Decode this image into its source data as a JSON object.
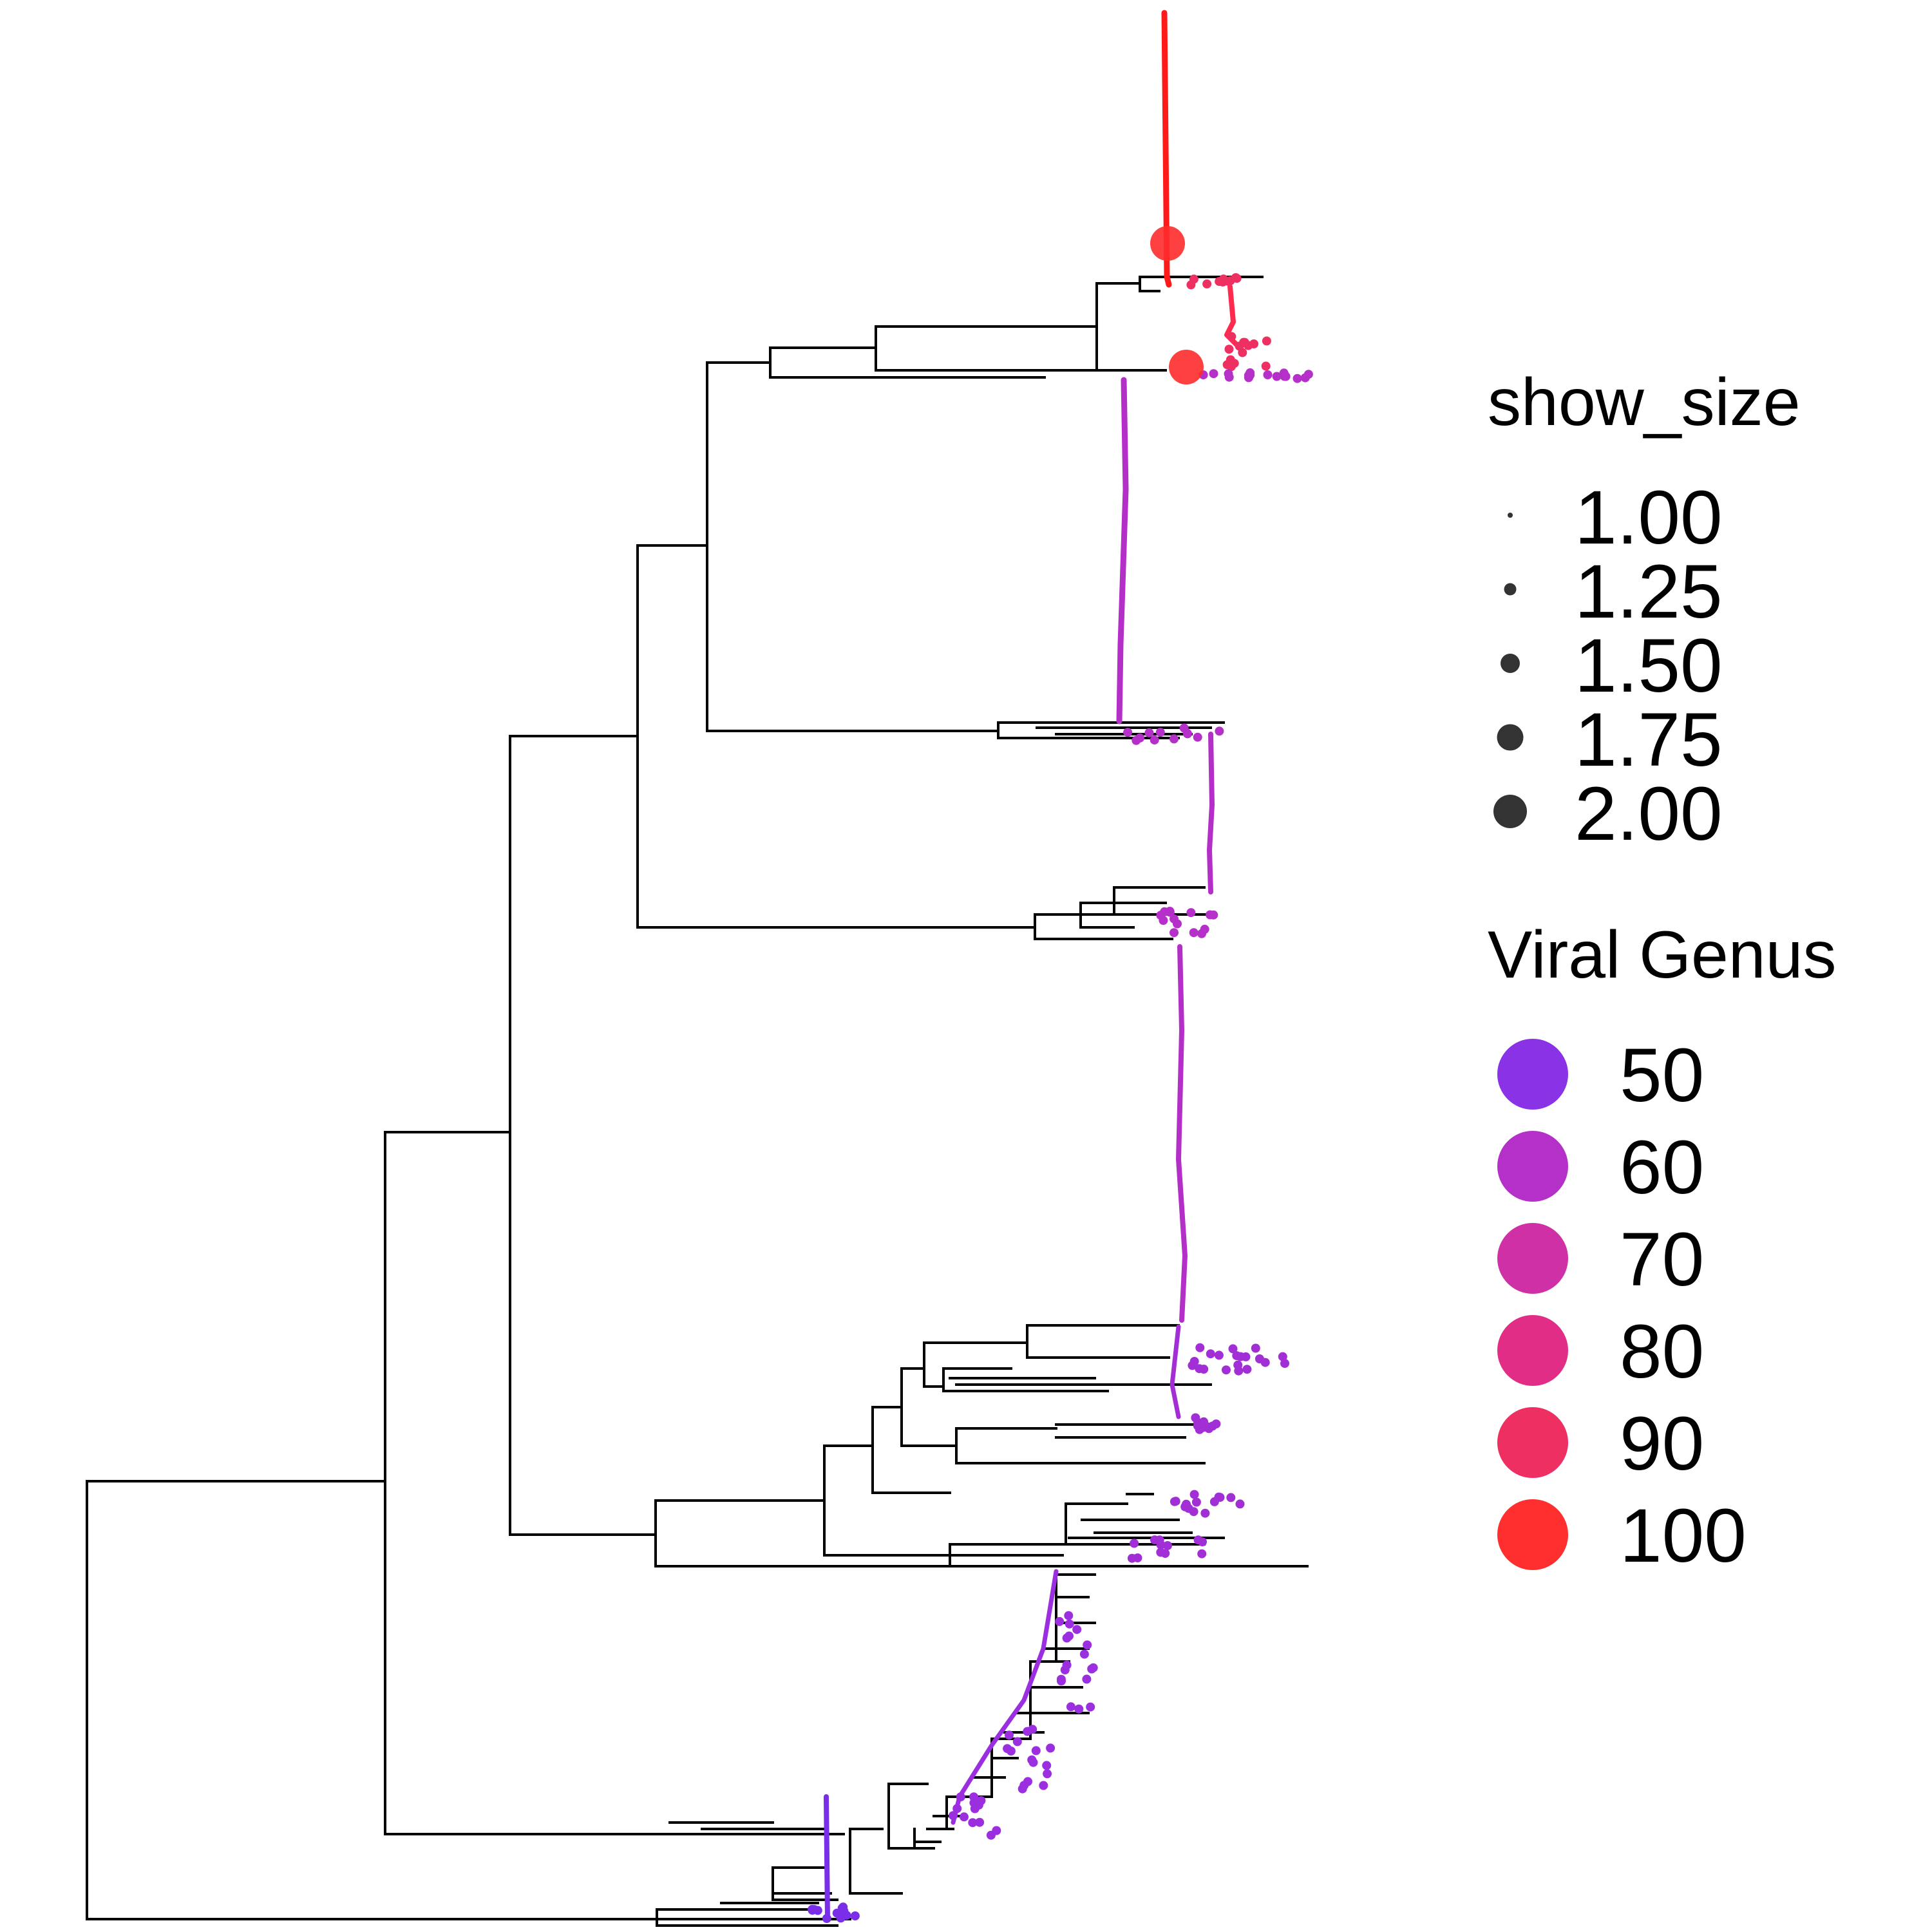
{
  "legend": {
    "size": {
      "title": "show_size",
      "items": [
        {
          "label": "1.00",
          "value": 1.0
        },
        {
          "label": "1.25",
          "value": 1.25
        },
        {
          "label": "1.50",
          "value": 1.5
        },
        {
          "label": "1.75",
          "value": 1.75
        },
        {
          "label": "2.00",
          "value": 2.0
        }
      ],
      "color": "#333333"
    },
    "color": {
      "title": "Viral Genus",
      "items": [
        {
          "label": "50",
          "value": 50,
          "color": "#8a32e6"
        },
        {
          "label": "60",
          "value": 60,
          "color": "#b430c8"
        },
        {
          "label": "70",
          "value": 70,
          "color": "#cf30a6"
        },
        {
          "label": "80",
          "value": 80,
          "color": "#e12d86"
        },
        {
          "label": "90",
          "value": 90,
          "color": "#ee2f62"
        },
        {
          "label": "100",
          "value": 100,
          "color": "#ff2f2f"
        }
      ]
    }
  },
  "tree": {
    "branch_color": "#000000",
    "highlight_color": "#ff1a1a"
  }
}
